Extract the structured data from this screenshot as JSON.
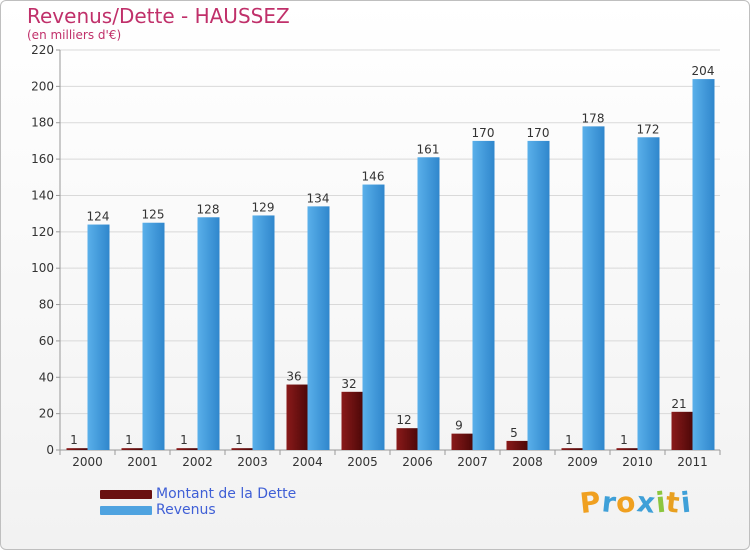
{
  "header": {
    "title": "Revenus/Dette - HAUSSEZ",
    "subtitle": "(en milliers d'€)"
  },
  "colors": {
    "dette": "#7a1414",
    "revenus": "#4fa3e0",
    "axis_text": "#333333",
    "grid": "#d9d9d9"
  },
  "chart_data": {
    "type": "bar",
    "title": "Revenus/Dette - HAUSSEZ",
    "ylabel": "(en milliers d'€)",
    "xlabel": "",
    "categories": [
      "2000",
      "2001",
      "2002",
      "2003",
      "2004",
      "2005",
      "2006",
      "2007",
      "2008",
      "2009",
      "2010",
      "2011"
    ],
    "ylim": [
      0,
      220
    ],
    "yticks": [
      0,
      20,
      40,
      60,
      80,
      100,
      120,
      140,
      160,
      180,
      200,
      220
    ],
    "series": [
      {
        "name": "Montant de la Dette",
        "values": [
          1,
          1,
          1,
          1,
          36,
          32,
          12,
          9,
          5,
          1,
          1,
          21
        ]
      },
      {
        "name": "Revenus",
        "values": [
          124,
          125,
          128,
          129,
          134,
          146,
          161,
          170,
          170,
          178,
          172,
          204
        ]
      }
    ],
    "grid": true,
    "legend": "bottom-left"
  },
  "legend": {
    "dette_label": "Montant de la Dette",
    "revenus_label": "Revenus"
  },
  "logo": {
    "letters": [
      "P",
      "r",
      "o",
      "x",
      "i",
      "t",
      "i"
    ],
    "colors": [
      "#f0a020",
      "#3fa0d8",
      "#f0a020",
      "#3fa0d8",
      "#8cc63f",
      "#e8a020",
      "#3fa0d8"
    ]
  }
}
